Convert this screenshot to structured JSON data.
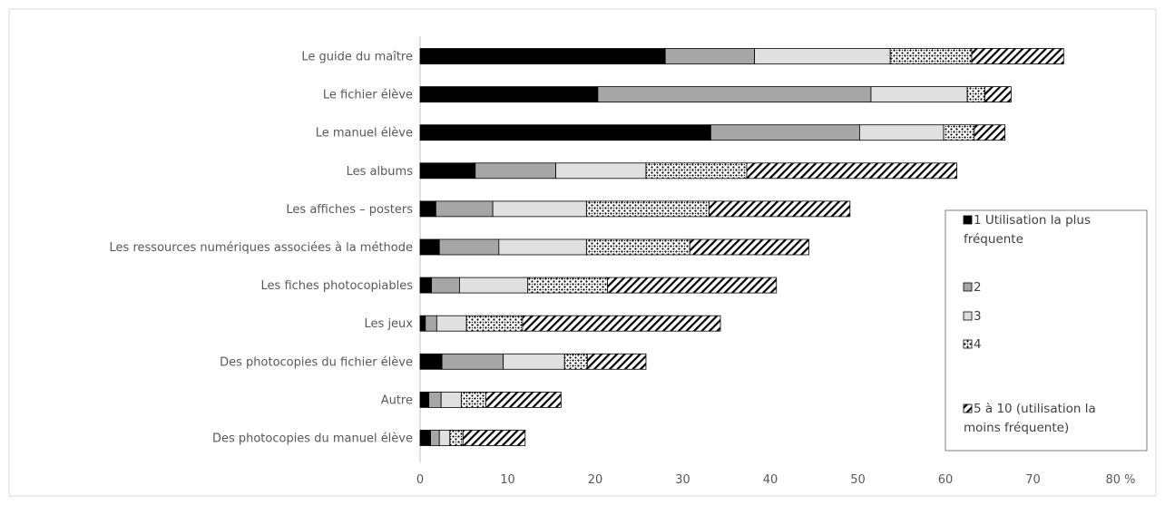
{
  "chart_data": {
    "type": "bar",
    "orientation": "horizontal",
    "stacked": true,
    "categories": [
      "Le guide du maître",
      "Le fichier élève",
      "Le manuel élève",
      "Les albums",
      "Les affiches – posters",
      "Les ressources numériques associées à la méthode",
      "Les fiches photocopiables",
      "Les jeux",
      "Des photocopies du fichier élève",
      "Autre",
      "Des photocopies du manuel élève"
    ],
    "series": [
      {
        "name": "1 Utilisation la plus fréquente",
        "fill": "solid-black",
        "values": [
          28.0,
          20.3,
          33.2,
          6.3,
          1.8,
          2.2,
          1.3,
          0.6,
          2.5,
          1.0,
          1.2
        ]
      },
      {
        "name": "2",
        "fill": "solid-dark-gray",
        "values": [
          10.2,
          31.2,
          17.0,
          9.2,
          6.5,
          6.8,
          3.2,
          1.3,
          7.0,
          1.4,
          1.0
        ]
      },
      {
        "name": "3",
        "fill": "solid-light-gray",
        "values": [
          15.5,
          11.0,
          9.6,
          10.3,
          10.7,
          10.0,
          7.8,
          3.4,
          7.0,
          2.3,
          1.2
        ]
      },
      {
        "name": "4",
        "fill": "dotted",
        "values": [
          9.3,
          2.0,
          3.5,
          11.5,
          14.0,
          11.8,
          9.1,
          6.4,
          2.6,
          2.8,
          1.5
        ]
      },
      {
        "name": "5 à 10 (utilisation la moins fréquente)",
        "fill": "diagonal-hatch",
        "values": [
          10.5,
          3.0,
          3.5,
          24.0,
          16.1,
          13.6,
          19.3,
          22.6,
          6.7,
          8.6,
          7.1
        ]
      }
    ],
    "x_ticks": [
      "0",
      "10",
      "20",
      "30",
      "40",
      "50",
      "60",
      "70",
      "80 %"
    ],
    "xlim": [
      0,
      80
    ],
    "grid": false,
    "legend_position": "right"
  }
}
